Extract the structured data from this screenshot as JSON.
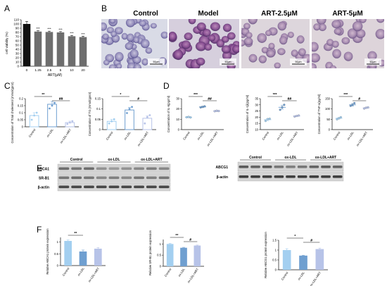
{
  "panels": {
    "A": "A",
    "B": "B",
    "C": "C",
    "D": "D",
    "E": "E",
    "F": "F"
  },
  "groups3": [
    "Control",
    "ox-LDL",
    "ox-LDL+ART"
  ],
  "micrographs": {
    "titles": [
      "Control",
      "Model",
      "ART-2.5μM",
      "ART-5μM"
    ],
    "scalebar": "50μm"
  },
  "colors": {
    "control": "#a3cff0",
    "oxldl": "#6f9fd0",
    "art": "#b7c3e8",
    "barA": [
      "#111111",
      "#6e6e6e",
      "#6e6e6e",
      "#6e6e6e",
      "#6e6e6e",
      "#6e6e6e"
    ],
    "dot": "#222222"
  },
  "chart_data": [
    {
      "id": "A",
      "type": "bar",
      "categories": [
        "0",
        "1.25",
        "2.5",
        "5",
        "10",
        "20"
      ],
      "values": [
        100,
        82,
        81,
        80,
        71,
        69
      ],
      "errors": [
        6,
        2,
        2,
        2,
        2,
        2
      ],
      "sig": [
        "",
        "***",
        "***",
        "***",
        "***",
        "***"
      ],
      "xlabel": "ART(μM)",
      "ylabel": "cell viability (%)",
      "ylim": [
        0,
        110
      ],
      "yticks": [
        0,
        10,
        20,
        30,
        40,
        50,
        60,
        70,
        80,
        90,
        100,
        110
      ]
    },
    {
      "id": "C1",
      "type": "bar",
      "categories": [
        "Control",
        "ox-LDL",
        "ox-LDL+ART"
      ],
      "values": [
        0.08,
        0.16,
        0.03
      ],
      "errors": [
        0.02,
        0.02,
        0.01
      ],
      "points": [
        [
          0.05,
          0.08,
          0.1
        ],
        [
          0.13,
          0.15,
          0.17
        ],
        [
          0.02,
          0.03,
          0.04
        ]
      ],
      "ylabel": "Concentration of Total cholesterol (mmol/gprot)",
      "ylim": [
        0,
        0.2
      ],
      "yticks": [
        0.0,
        0.05,
        0.1,
        0.15,
        0.2
      ],
      "sig": [
        {
          "from": 0,
          "to": 1,
          "label": "**"
        },
        {
          "from": 1,
          "to": 2,
          "label": "##"
        }
      ]
    },
    {
      "id": "C2",
      "type": "bar",
      "categories": [
        "Control",
        "ox-LDL",
        "ox-LDL+ART"
      ],
      "values": [
        0.04,
        0.095,
        0.055
      ],
      "errors": [
        0.01,
        0.012,
        0.012
      ],
      "points": [
        [
          0.03,
          0.04,
          0.05
        ],
        [
          0.08,
          0.1,
          0.11
        ],
        [
          0.03,
          0.06,
          0.07
        ]
      ],
      "ylabel": "Concentration of TG (mmol/gprot)",
      "ylim": [
        0,
        0.15
      ],
      "yticks": [
        0.0,
        0.05,
        0.1,
        0.15
      ],
      "sig": [
        {
          "from": 0,
          "to": 1,
          "label": "*"
        },
        {
          "from": 1,
          "to": 2,
          "label": "#"
        }
      ]
    },
    {
      "id": "D1",
      "type": "scatter",
      "categories": [
        "Control",
        "ox-LDL",
        "ox-LDL+ART"
      ],
      "values": [
        12,
        22,
        18
      ],
      "errors": [
        0.4,
        0.7,
        0.6
      ],
      "points": [
        [
          12,
          12.3,
          11.8
        ],
        [
          21.5,
          22,
          22.6
        ],
        [
          17.8,
          18.3,
          18
        ]
      ],
      "ylabel": "Concentration of IL-6(pg/ml)",
      "ylim": [
        0,
        30
      ],
      "yticks": [
        0,
        10,
        20,
        30
      ],
      "sig": [
        {
          "from": 0,
          "to": 1,
          "label": "***"
        },
        {
          "from": 1,
          "to": 2,
          "label": "##"
        }
      ]
    },
    {
      "id": "D2",
      "type": "scatter",
      "categories": [
        "Control",
        "ox-LDL",
        "ox-LDL+ART"
      ],
      "values": [
        18,
        28,
        21
      ],
      "errors": [
        0.8,
        1.5,
        0.5
      ],
      "points": [
        [
          17,
          18.5,
          18.8
        ],
        [
          26,
          28,
          30
        ],
        [
          20.5,
          21,
          21.4
        ]
      ],
      "ylabel": "Concentration of IL-1β(pg/ml)",
      "ylim": [
        10,
        35
      ],
      "yticks": [
        10,
        15,
        20,
        25,
        30,
        35
      ],
      "sig": [
        {
          "from": 0,
          "to": 1,
          "label": "***"
        },
        {
          "from": 1,
          "to": 2,
          "label": "##"
        }
      ]
    },
    {
      "id": "D3",
      "type": "scatter",
      "categories": [
        "Control",
        "ox-LDL",
        "ox-LDL+ART"
      ],
      "values": [
        55,
        120,
        105
      ],
      "errors": [
        4,
        6,
        3
      ],
      "points": [
        [
          50,
          55,
          60
        ],
        [
          115,
          120,
          128
        ],
        [
          102,
          106,
          108
        ]
      ],
      "ylabel": "Concentration of TNF-α(pg/ml)",
      "ylim": [
        0,
        150
      ],
      "yticks": [
        0,
        50,
        100,
        150
      ],
      "sig": [
        {
          "from": 0,
          "to": 1,
          "label": "***"
        },
        {
          "from": 1,
          "to": 2,
          "label": "#"
        }
      ]
    },
    {
      "id": "F1",
      "type": "bar",
      "categories": [
        "Control",
        "ox-LDL",
        "ox-LDL+ART"
      ],
      "values": [
        1.05,
        0.6,
        0.72
      ],
      "errors": [
        0.04,
        0.06,
        0.05
      ],
      "ylabel": "Relative ABCA1 protein expression",
      "ylim": [
        0,
        1.2
      ],
      "yticks": [
        0.0,
        0.5,
        1.0
      ],
      "sig": [
        {
          "from": 0,
          "to": 1,
          "label": "**"
        }
      ]
    },
    {
      "id": "F2",
      "type": "bar",
      "categories": [
        "Control",
        "ox-LDL",
        "ox-LDL+ART"
      ],
      "values": [
        1.0,
        0.83,
        0.93
      ],
      "errors": [
        0.03,
        0.02,
        0.02
      ],
      "ylabel": "Relative SR-B1 protein expression",
      "ylim": [
        0,
        1.2
      ],
      "yticks": [
        0.0,
        0.5,
        1.0
      ],
      "sig": [
        {
          "from": 0,
          "to": 1,
          "label": "**"
        },
        {
          "from": 1,
          "to": 2,
          "label": "#"
        }
      ]
    },
    {
      "id": "F3",
      "type": "bar",
      "categories": [
        "Control",
        "ox-LDL",
        "ox-LDL+ART"
      ],
      "values": [
        1.0,
        0.72,
        1.05
      ],
      "errors": [
        0.07,
        0.02,
        0.05
      ],
      "ylabel": "Relative ABCG1 protein expression",
      "ylim": [
        0,
        1.5
      ],
      "yticks": [
        0.0,
        0.5,
        1.0,
        1.5
      ],
      "sig": [
        {
          "from": 0,
          "to": 1,
          "label": "*"
        },
        {
          "from": 1,
          "to": 2,
          "label": "#"
        }
      ]
    }
  ],
  "blots": [
    {
      "id": "E1",
      "groups": [
        "Control",
        "ox-LDL",
        "ox-LDL+ART"
      ],
      "rows": [
        "ABCA1",
        "SR-B1",
        "β-actin"
      ],
      "intensity": [
        [
          0.55,
          0.5,
          0.55,
          0.35,
          0.3,
          0.35,
          0.4,
          0.45,
          0.4
        ],
        [
          0.5,
          0.55,
          0.5,
          0.4,
          0.45,
          0.4,
          0.5,
          0.45,
          0.5
        ],
        [
          0.75,
          0.75,
          0.75,
          0.75,
          0.75,
          0.75,
          0.75,
          0.75,
          0.75
        ]
      ]
    },
    {
      "id": "E2",
      "groups": [
        "Control",
        "ox-LDL",
        "ox-LDL+ART"
      ],
      "rows": [
        "ABCG1",
        "β-actin"
      ],
      "intensity": [
        [
          0.65,
          0.6,
          0.65,
          0.5,
          0.45,
          0.5,
          0.6,
          0.65,
          0.6
        ],
        [
          0.8,
          0.8,
          0.8,
          0.8,
          0.8,
          0.8,
          0.8,
          0.8,
          0.8
        ]
      ]
    }
  ]
}
